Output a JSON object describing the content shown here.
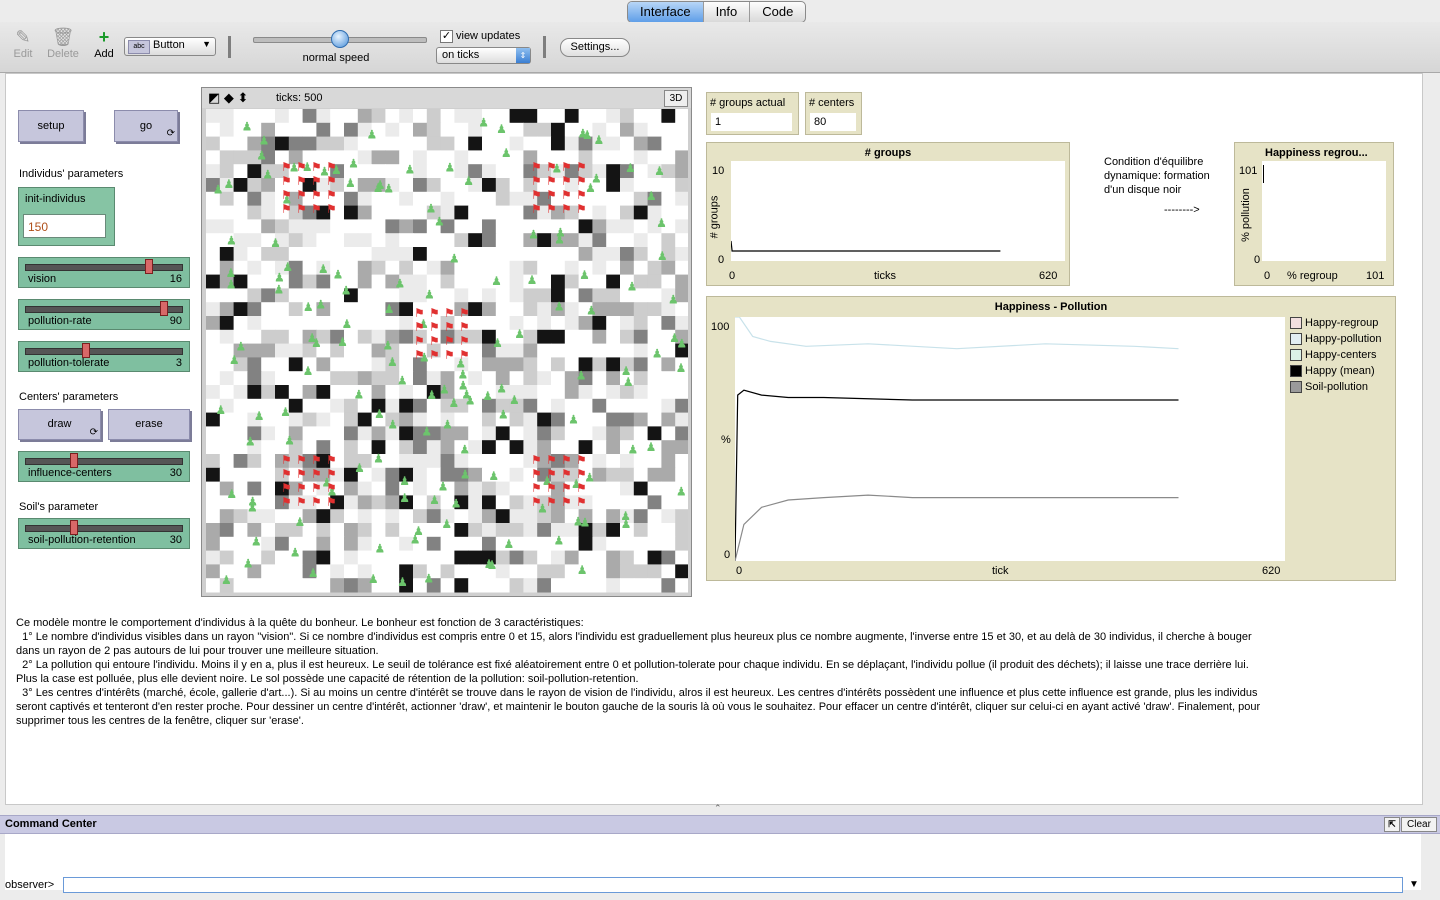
{
  "tabs": [
    {
      "label": "Interface",
      "active": true
    },
    {
      "label": "Info",
      "active": false
    },
    {
      "label": "Code",
      "active": false
    }
  ],
  "toolbar": {
    "edit": "Edit",
    "delete": "Delete",
    "add": "Add",
    "widget_type": "Button",
    "speed_label": "normal speed",
    "speed_level": 0.5,
    "view_updates": "view updates",
    "view_updates_checked": true,
    "update_mode": "on ticks",
    "settings": "Settings..."
  },
  "buttons": {
    "setup": "setup",
    "go": "go",
    "draw": "draw",
    "erase": "erase"
  },
  "sections": {
    "individus": "Individus' parameters",
    "centers": "Centers' parameters",
    "soil": "Soil's parameter"
  },
  "init_individus": {
    "label": "init-individus",
    "value": "150"
  },
  "sliders": [
    {
      "name": "vision",
      "value": "16",
      "fraction": 0.8
    },
    {
      "name": "pollution-rate",
      "value": "90",
      "fraction": 0.9
    },
    {
      "name": "pollution-tolerate",
      "value": "3",
      "fraction": 0.38
    },
    {
      "name": "influence-centers",
      "value": "30",
      "fraction": 0.3
    },
    {
      "name": "soil-pollution-retention",
      "value": "30",
      "fraction": 0.3
    }
  ],
  "view": {
    "ticks": "ticks: 500",
    "button_3d": "3D"
  },
  "monitors": [
    {
      "label": "# groups actual",
      "value": "1"
    },
    {
      "label": "# centers",
      "value": "80"
    }
  ],
  "note": {
    "line1": "Condition d'équilibre",
    "line2": "dynamique: formation",
    "line3": "d'un disque noir",
    "arrow": "-------->"
  },
  "plots": {
    "groups": {
      "title": "# groups",
      "ylabel": "# groups",
      "xlabel": "ticks",
      "ymax": "10",
      "ymin": "0",
      "xmin": "0",
      "xmax": "620"
    },
    "happiness_regroup": {
      "title": "Happiness    regrou...",
      "ylabel": "% pollution",
      "xlabel": "% regroup",
      "ymax": "101",
      "ymin": "0",
      "xmin": "0",
      "xmax": "101"
    },
    "happiness_pollution": {
      "title": "Happiness - Pollution",
      "ylabel": "%",
      "xlabel": "tick",
      "ymax": "100",
      "ymin": "0",
      "xmin": "0",
      "xmax": "620"
    }
  },
  "legend": [
    {
      "name": "Happy-regroup",
      "color": "#f2dfdf"
    },
    {
      "name": "Happy-pollution",
      "color": "#e3eef2"
    },
    {
      "name": "Happy-centers",
      "color": "#dcf2e6"
    },
    {
      "name": "Happy (mean)",
      "color": "#000000"
    },
    {
      "name": "Soil-pollution",
      "color": "#9a9a9a"
    }
  ],
  "chart_data": [
    {
      "type": "line",
      "title": "# groups",
      "xlabel": "ticks",
      "ylabel": "# groups",
      "xlim": [
        0,
        620
      ],
      "ylim": [
        0,
        10
      ],
      "series": [
        {
          "values_x": [
            0,
            2,
            5,
            500
          ],
          "values_y": [
            2,
            1,
            1,
            1
          ]
        }
      ]
    },
    {
      "type": "line",
      "title": "Happiness - Pollution",
      "xlabel": "tick",
      "ylabel": "%",
      "xlim": [
        0,
        620
      ],
      "ylim": [
        0,
        100
      ],
      "series": [
        {
          "name": "Happy-pollution",
          "x": [
            0,
            5,
            20,
            40,
            80,
            150,
            250,
            350,
            450,
            500
          ],
          "y": [
            100,
            100,
            92,
            90,
            88,
            89,
            87,
            89,
            88,
            87
          ]
        },
        {
          "name": "Happy (mean)",
          "x": [
            0,
            3,
            10,
            30,
            60,
            100,
            200,
            300,
            400,
            500
          ],
          "y": [
            0,
            68,
            70,
            68,
            67,
            67,
            66,
            66,
            66,
            66
          ]
        },
        {
          "name": "Soil-pollution",
          "x": [
            0,
            10,
            30,
            60,
            100,
            150,
            200,
            300,
            400,
            500
          ],
          "y": [
            0,
            15,
            22,
            25,
            26,
            27,
            26,
            26,
            26,
            26
          ]
        }
      ]
    }
  ],
  "description": [
    "Ce modèle montre le comportement d'individus à la quête du bonheur. Le bonheur est fonction de 3 caractéristiques:",
    "  1° Le nombre d'individus visibles dans un rayon \"vision\". Si ce nombre d'individus est compris entre 0 et 15, alors l'individu est graduellement plus heureux plus ce nombre augmente, l'inverse entre 15 et 30, et au delà de 30 individus, il cherche à bouger",
    "dans un rayon de 2 pas autours de lui pour trouver une meilleure situation.",
    "  2° La pollution qui entoure l'individu. Moins il y en a, plus il est heureux. Le seuil de tolérance est fixé aléatoirement entre 0 et pollution-tolerate pour chaque individu. En se déplaçant, l'individu pollue (il produit des déchets); il laisse une trace derrière lui.",
    "Plus la case est polluée, plus elle devient noire. Le sol possède une capacité de rétention de la pollution: soil-pollution-retention.",
    "  3° Les centres d'intérêts (marché, école, gallerie d'art...). Si au moins un centre d'intérêt se trouve dans le rayon de vision de l'individu, alros il est heureux. Les centres d'intérêts possèdent une influence et plus cette influence est grande, plus les individus",
    "seront captivés et tenteront d'en rester proche. Pour dessiner un centre d'intérêt, actionner 'draw', et maintenir le bouton gauche de la souris là où vous le souhaitez. Pour effacer un centre d'intérêt, cliquer sur celui-ci en ayant activé 'draw'. Finalement, pour",
    "supprimer tous les centres de la fenêtre, cliquer sur 'erase'."
  ],
  "command_center": {
    "title": "Command Center",
    "clear": "Clear",
    "prompt": "observer>"
  }
}
